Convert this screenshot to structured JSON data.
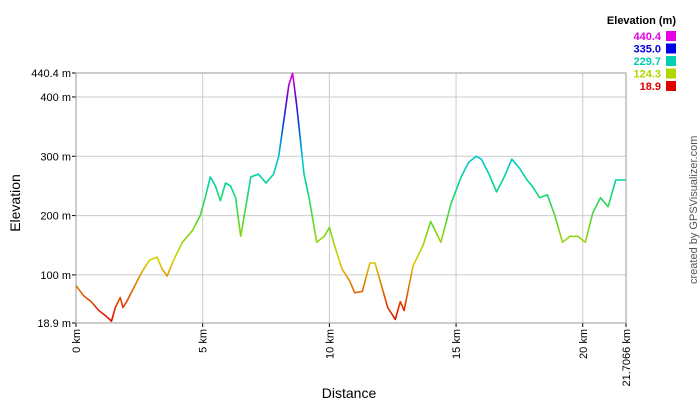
{
  "chart_data": {
    "type": "line",
    "title": "",
    "xlabel": "Distance",
    "ylabel": "Elevation",
    "xlim": [
      0,
      21.7066
    ],
    "ylim": [
      18.9,
      440.4
    ],
    "grid": true,
    "x_ticks": [
      {
        "value": 0,
        "label": "0 km"
      },
      {
        "value": 5,
        "label": "5 km"
      },
      {
        "value": 10,
        "label": "10 km"
      },
      {
        "value": 15,
        "label": "15 km"
      },
      {
        "value": 20,
        "label": "20 km"
      },
      {
        "value": 21.7066,
        "label": "21.7066 km"
      }
    ],
    "y_ticks": [
      {
        "value": 18.9,
        "label": "18.9 m"
      },
      {
        "value": 100,
        "label": "100 m"
      },
      {
        "value": 200,
        "label": "200 m"
      },
      {
        "value": 300,
        "label": "300 m"
      },
      {
        "value": 400,
        "label": "400 m"
      },
      {
        "value": 440.4,
        "label": "440.4 m"
      }
    ],
    "legend": {
      "title": "Elevation (m)",
      "placement": "top-right",
      "entries": [
        {
          "label": "440.4",
          "value": 440.4,
          "color": "#e600e6"
        },
        {
          "label": "335.0",
          "value": 335.0,
          "color": "#0000e6"
        },
        {
          "label": "229.7",
          "value": 229.7,
          "color": "#00d0b0"
        },
        {
          "label": "124.3",
          "value": 124.3,
          "color": "#b0d800"
        },
        {
          "label": "18.9",
          "value": 18.9,
          "color": "#e00000"
        }
      ]
    },
    "series": [
      {
        "x": [
          0,
          0.3,
          0.6,
          0.9,
          1.2,
          1.4,
          1.55,
          1.75,
          1.85,
          2.0,
          2.3,
          2.6,
          2.9,
          3.2,
          3.4,
          3.6,
          3.85,
          4.2,
          4.6,
          4.9,
          5.1,
          5.3,
          5.5,
          5.7,
          5.9,
          6.1,
          6.3,
          6.5,
          6.7,
          6.9,
          7.2,
          7.5,
          7.8,
          8.0,
          8.2,
          8.4,
          8.55,
          8.7,
          8.8,
          9.0,
          9.2,
          9.5,
          9.8,
          10.0,
          10.2,
          10.5,
          10.8,
          11.0,
          11.3,
          11.6,
          11.8,
          12.0,
          12.3,
          12.6,
          12.8,
          12.95,
          13.3,
          13.7,
          14.0,
          14.4,
          14.8,
          15.2,
          15.5,
          15.8,
          16.0,
          16.3,
          16.6,
          16.9,
          17.2,
          17.5,
          17.8,
          18.0,
          18.3,
          18.6,
          18.9,
          19.2,
          19.5,
          19.8,
          20.1,
          20.4,
          20.7,
          21.0,
          21.3,
          21.7
        ],
        "y": [
          82,
          65,
          55,
          40,
          30,
          22,
          45,
          62,
          45,
          55,
          80,
          105,
          125,
          130,
          110,
          98,
          125,
          155,
          175,
          200,
          230,
          265,
          250,
          225,
          255,
          250,
          230,
          165,
          215,
          265,
          270,
          255,
          270,
          300,
          360,
          420,
          440,
          390,
          350,
          270,
          230,
          155,
          165,
          180,
          150,
          110,
          90,
          70,
          72,
          120,
          120,
          90,
          45,
          25,
          55,
          40,
          115,
          150,
          190,
          155,
          220,
          265,
          290,
          300,
          295,
          270,
          240,
          265,
          295,
          280,
          260,
          250,
          230,
          235,
          200,
          155,
          165,
          165,
          155,
          205,
          230,
          215,
          260,
          260
        ]
      }
    ]
  },
  "credit": "created by GPSVisualizer.com"
}
